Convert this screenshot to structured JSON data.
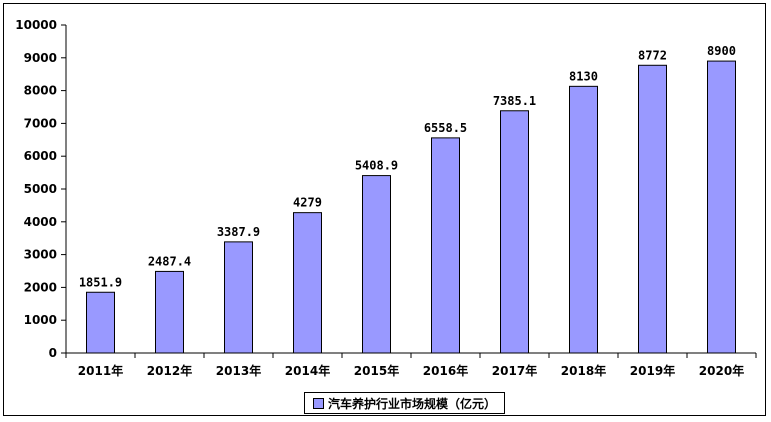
{
  "chart_data": {
    "type": "bar",
    "categories": [
      "2011年",
      "2012年",
      "2013年",
      "2014年",
      "2015年",
      "2016年",
      "2017年",
      "2018年",
      "2019年",
      "2020年"
    ],
    "series": [
      {
        "name": "汽车养护行业市场规模（亿元）",
        "values": [
          1851.9,
          2487.4,
          3387.9,
          4279,
          5408.9,
          6558.5,
          7385.1,
          8130,
          8772,
          8900
        ],
        "data_labels": [
          "1851.9",
          "2487.4",
          "3387.9",
          "4279",
          "5408.9",
          "6558.5",
          "7385.1",
          "8130",
          "8772",
          "8900"
        ]
      }
    ],
    "ylim": [
      0,
      10000
    ],
    "yticks": [
      0,
      1000,
      2000,
      3000,
      4000,
      5000,
      6000,
      7000,
      8000,
      9000,
      10000
    ],
    "grid": false,
    "legend_position": "bottom",
    "bar_color": "#9999ff",
    "title": "",
    "xlabel": "",
    "ylabel": ""
  }
}
